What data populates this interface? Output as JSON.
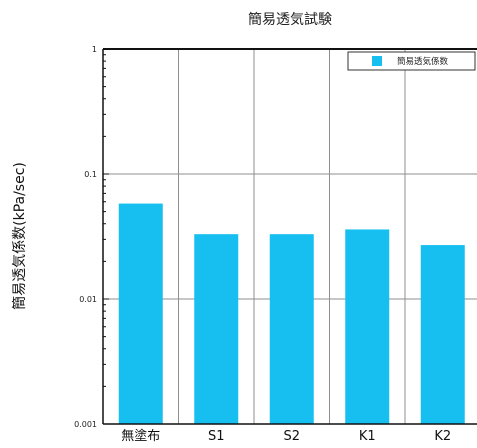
{
  "chart_data": {
    "type": "bar",
    "title": "簡易透気試験",
    "ylabel": "簡易透気係数(kPa/sec)",
    "xlabel": "",
    "categories": [
      "無塗布",
      "S1",
      "S2",
      "K1",
      "K2"
    ],
    "series": [
      {
        "name": "簡易透気係数",
        "values": [
          0.058,
          0.033,
          0.033,
          0.036,
          0.027
        ]
      }
    ],
    "yscale": "log",
    "ylim": [
      0.001,
      1
    ],
    "yticks": [
      {
        "value": 0.001,
        "label": "0.001"
      },
      {
        "value": 0.01,
        "label": "0.01"
      },
      {
        "value": 0.1,
        "label": "0.1"
      },
      {
        "value": 1,
        "label": "1"
      }
    ],
    "grid": true,
    "legend_position": "top-right",
    "colors": {
      "bar": "#16bff0",
      "grid": "#8f8f8f",
      "axis": "#111111"
    }
  }
}
